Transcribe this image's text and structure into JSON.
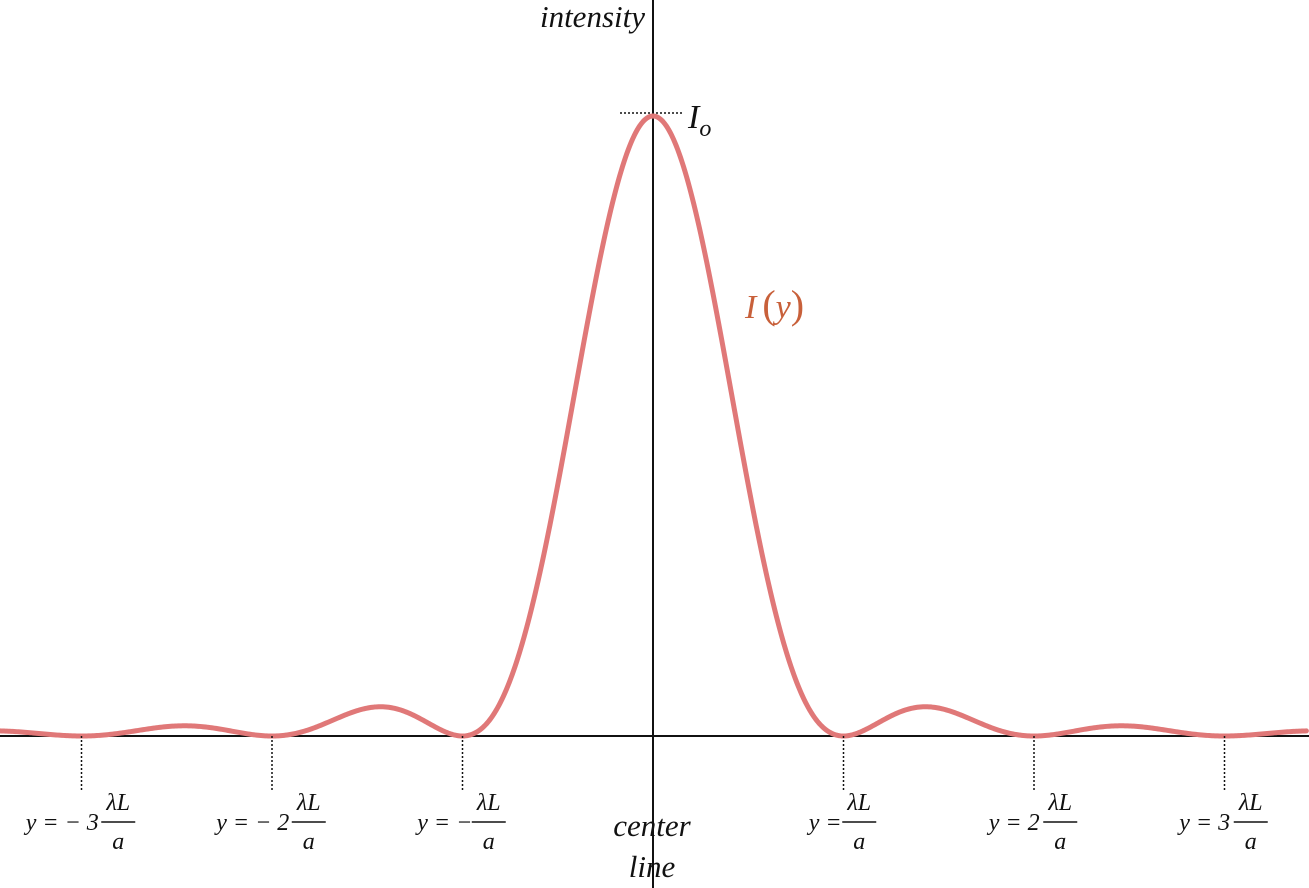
{
  "chart_data": {
    "type": "line",
    "y_axis_label": "intensity",
    "x_axis_label_line1": "center",
    "x_axis_label_line2": "line",
    "series": [
      {
        "name": "I(y)",
        "function": "sinc_squared",
        "peak": 1,
        "zeros_at_multiples_of": "λL/a",
        "color": "#e07878"
      }
    ],
    "peak_label": {
      "main": "I",
      "subscript": "o"
    },
    "curve_label": {
      "main": "I",
      "open": "(",
      "var": "y",
      "close": ")",
      "color": "#c8603a"
    },
    "ticks": [
      {
        "n": -3,
        "prefix": "y = − 3",
        "numerator": "λL",
        "denominator": "a"
      },
      {
        "n": -2,
        "prefix": "y = − 2",
        "numerator": "λL",
        "denominator": "a"
      },
      {
        "n": -1,
        "prefix": "y = −",
        "numerator": "λL",
        "denominator": "a"
      },
      {
        "n": 1,
        "prefix": "y =",
        "numerator": "λL",
        "denominator": "a"
      },
      {
        "n": 2,
        "prefix": "y = 2",
        "numerator": "λL",
        "denominator": "a"
      },
      {
        "n": 3,
        "prefix": "y = 3",
        "numerator": "λL",
        "denominator": "a"
      }
    ],
    "x_range_in_units_of_lambdaL_over_a": [
      -3.43,
      3.43
    ],
    "y_range": [
      -0.1,
      1.0
    ],
    "grid": false,
    "legend": "none"
  }
}
